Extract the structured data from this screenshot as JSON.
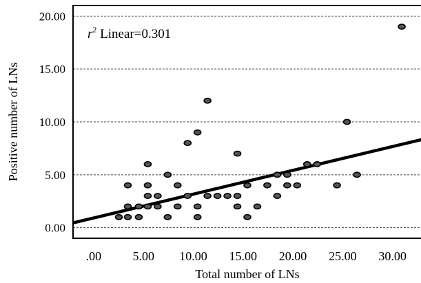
{
  "chart_data": {
    "type": "scatter",
    "xlabel": "Total number of LNs",
    "ylabel": "Positive number of LNs",
    "annotation": {
      "r_symbol": "r",
      "superscript": "2",
      "text": " Linear=0.301"
    },
    "xlim": [
      -2,
      33
    ],
    "ylim": [
      -1,
      21
    ],
    "xticks": [
      0,
      5,
      10,
      15,
      20,
      25,
      30
    ],
    "xtick_labels": [
      ".00",
      "5.00",
      "10.00",
      "15.00",
      "20.00",
      "25.00",
      "30.00"
    ],
    "yticks": [
      0,
      5,
      10,
      15,
      20
    ],
    "ytick_labels": [
      "0.00",
      "5.00",
      "10.00",
      "15.00",
      "20.00"
    ],
    "grid": "horizontal dashed",
    "fit_line": {
      "intercept": 0.9,
      "slope": 0.225
    },
    "points": [
      {
        "x": 2.6,
        "y": 1
      },
      {
        "x": 3.5,
        "y": 1
      },
      {
        "x": 3.5,
        "y": 2
      },
      {
        "x": 3.5,
        "y": 4
      },
      {
        "x": 4.6,
        "y": 1
      },
      {
        "x": 4.6,
        "y": 2
      },
      {
        "x": 5.5,
        "y": 2
      },
      {
        "x": 5.5,
        "y": 3
      },
      {
        "x": 5.5,
        "y": 4
      },
      {
        "x": 5.5,
        "y": 6
      },
      {
        "x": 6.5,
        "y": 2
      },
      {
        "x": 6.5,
        "y": 3
      },
      {
        "x": 7.5,
        "y": 1
      },
      {
        "x": 7.5,
        "y": 5
      },
      {
        "x": 8.5,
        "y": 2
      },
      {
        "x": 8.5,
        "y": 4
      },
      {
        "x": 9.5,
        "y": 3
      },
      {
        "x": 9.5,
        "y": 8
      },
      {
        "x": 10.5,
        "y": 1
      },
      {
        "x": 10.5,
        "y": 2
      },
      {
        "x": 10.5,
        "y": 9
      },
      {
        "x": 11.5,
        "y": 3
      },
      {
        "x": 11.5,
        "y": 12
      },
      {
        "x": 12.5,
        "y": 3
      },
      {
        "x": 13.5,
        "y": 3
      },
      {
        "x": 14.5,
        "y": 2
      },
      {
        "x": 14.5,
        "y": 3
      },
      {
        "x": 14.5,
        "y": 7
      },
      {
        "x": 15.5,
        "y": 1
      },
      {
        "x": 15.5,
        "y": 4
      },
      {
        "x": 16.5,
        "y": 2
      },
      {
        "x": 17.5,
        "y": 4
      },
      {
        "x": 18.5,
        "y": 3
      },
      {
        "x": 18.5,
        "y": 5
      },
      {
        "x": 19.5,
        "y": 4
      },
      {
        "x": 19.5,
        "y": 5
      },
      {
        "x": 20.5,
        "y": 4
      },
      {
        "x": 21.5,
        "y": 6
      },
      {
        "x": 22.5,
        "y": 6
      },
      {
        "x": 24.5,
        "y": 4
      },
      {
        "x": 25.5,
        "y": 10
      },
      {
        "x": 26.5,
        "y": 5
      },
      {
        "x": 31.0,
        "y": 19
      }
    ]
  }
}
